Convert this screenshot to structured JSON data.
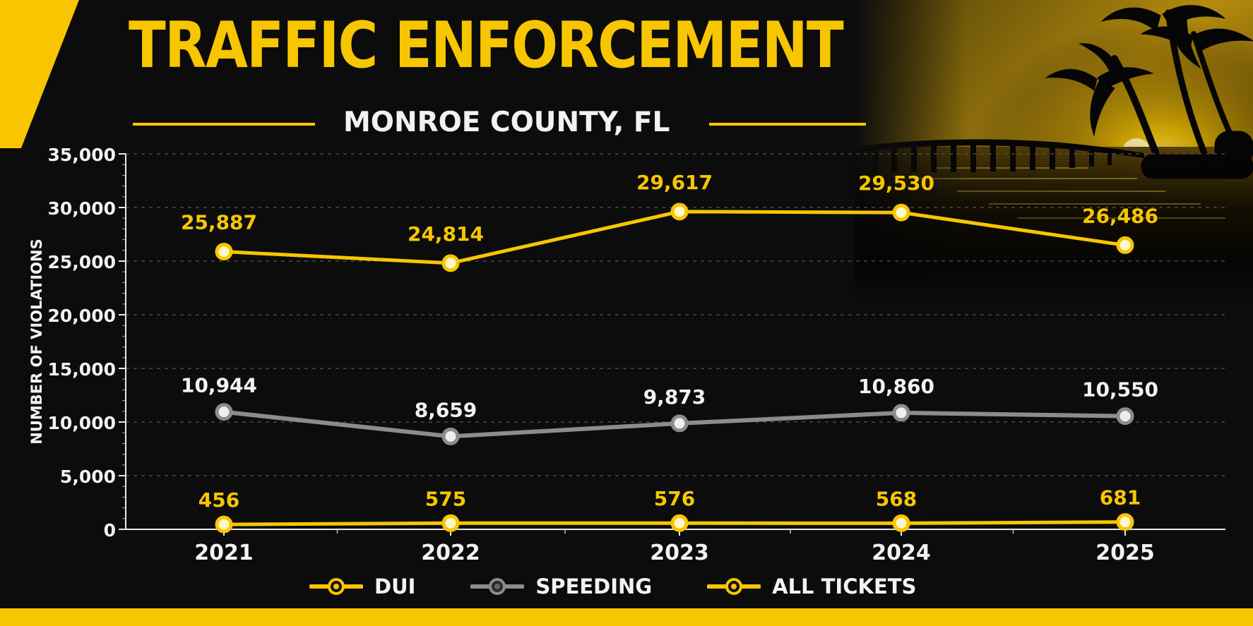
{
  "header": {
    "title": "TRAFFIC ENFORCEMENT",
    "subtitle": "MONROE COUNTY, FL"
  },
  "colors": {
    "background": "#0c0c0c",
    "accent": "#f7c600",
    "grid": "#555555",
    "axis": "#e8e8e8",
    "label_light": "#f2f2f2"
  },
  "chart_data": {
    "type": "line",
    "x": [
      2021,
      2022,
      2023,
      2024,
      2025
    ],
    "categories": [
      "2021",
      "2022",
      "2023",
      "2024",
      "2025"
    ],
    "series": [
      {
        "name": "DUI",
        "values": [
          456,
          575,
          576,
          568,
          681
        ],
        "labels": [
          "456",
          "575",
          "576",
          "568",
          "681"
        ],
        "color": "#f7c600"
      },
      {
        "name": "SPEEDING",
        "values": [
          10944,
          8659,
          9873,
          10860,
          10550
        ],
        "labels": [
          "10,944",
          "8,659",
          "9,873",
          "10,860",
          "10,550"
        ],
        "color": "#8c8c8c"
      },
      {
        "name": "ALL TICKETS",
        "values": [
          25887,
          24814,
          29617,
          29530,
          26486
        ],
        "labels": [
          "25,887",
          "24,814",
          "29,617",
          "29,530",
          "26,486"
        ],
        "color": "#f7c600"
      }
    ],
    "ylabel": "NUMBER OF VIOLATIONS",
    "ylim": [
      0,
      35000
    ],
    "yticks": [
      0,
      5000,
      10000,
      15000,
      20000,
      25000,
      30000,
      35000
    ],
    "ytick_labels": [
      "0",
      "5,000",
      "10,000",
      "15,000",
      "20,000",
      "25,000",
      "30,000",
      "35,000"
    ],
    "grid": true,
    "legend_position": "bottom"
  }
}
